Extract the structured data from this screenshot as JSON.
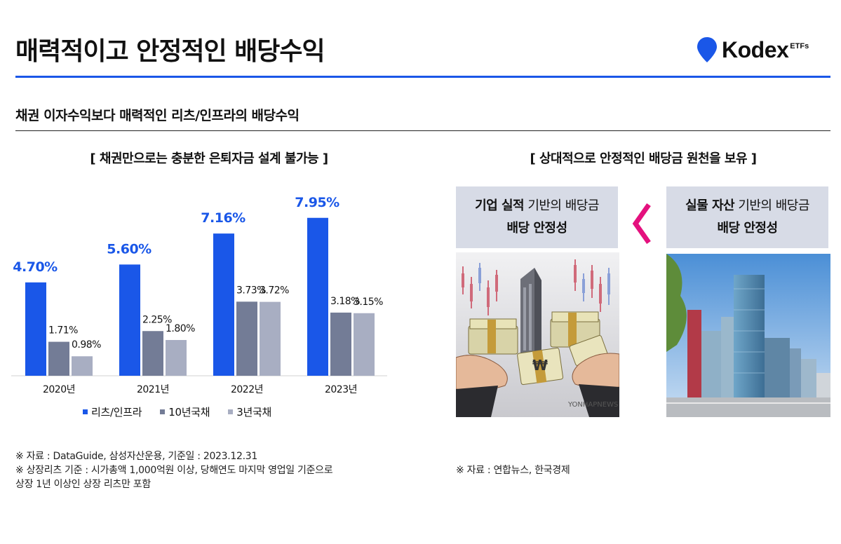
{
  "header": {
    "title": "매력적이고 안정적인 배당수익",
    "logo_word": "Kodex",
    "logo_suffix": "ETFs",
    "subtitle": "채권 이자수익보다 매력적인 리츠/인프라의 배당수익"
  },
  "left_section": {
    "heading": "[ 채권만으로는 충분한 은퇴자금 설계 불가능 ]"
  },
  "right_section": {
    "heading": "[ 상대적으로 안정적인 배당금 원천을 보유 ]",
    "card_left": {
      "bold": "기업 실적",
      "rest": " 기반의 배당금",
      "line2": "배당 안정성"
    },
    "card_right": {
      "bold": "실물 자산",
      "rest": " 기반의 배당금",
      "line2": "배당 안정성"
    },
    "chevron_icon": "chevron-left-icon",
    "photo_left_watermark": "YONHAPNEWS",
    "photo_left_symbol": "₩"
  },
  "chart_data": {
    "type": "bar",
    "categories": [
      "2020년",
      "2021년",
      "2022년",
      "2023년"
    ],
    "series": [
      {
        "name": "리츠/인프라",
        "values": [
          4.7,
          5.6,
          7.16,
          7.95
        ],
        "labels": [
          "4.70%",
          "5.60%",
          "7.16%",
          "7.95%"
        ],
        "color": "#1a57e8"
      },
      {
        "name": "10년국채",
        "values": [
          1.71,
          2.25,
          3.73,
          3.18
        ],
        "labels": [
          "1.71%",
          "2.25%",
          "3.73%",
          "3.18%"
        ],
        "color": "#737c96"
      },
      {
        "name": "3년국채",
        "values": [
          0.98,
          1.8,
          3.72,
          3.15
        ],
        "labels": [
          "0.98%",
          "1.80%",
          "3.72%",
          "3.15%"
        ],
        "color": "#a8aec2"
      }
    ],
    "ylim": [
      0,
      9
    ],
    "grid": false,
    "legend": "bottom-center"
  },
  "notes": {
    "left": [
      "※ 자료 : DataGuide, 삼성자산운용, 기준일 : 2023.12.31",
      "※ 상장리츠 기준 : 시가총액 1,000억원 이상, 당해연도 마지막 영업일 기준으로",
      "상장 1년 이상인 상장 리츠만 포함"
    ],
    "right": "※ 자료 : 연합뉴스, 한국경제"
  }
}
